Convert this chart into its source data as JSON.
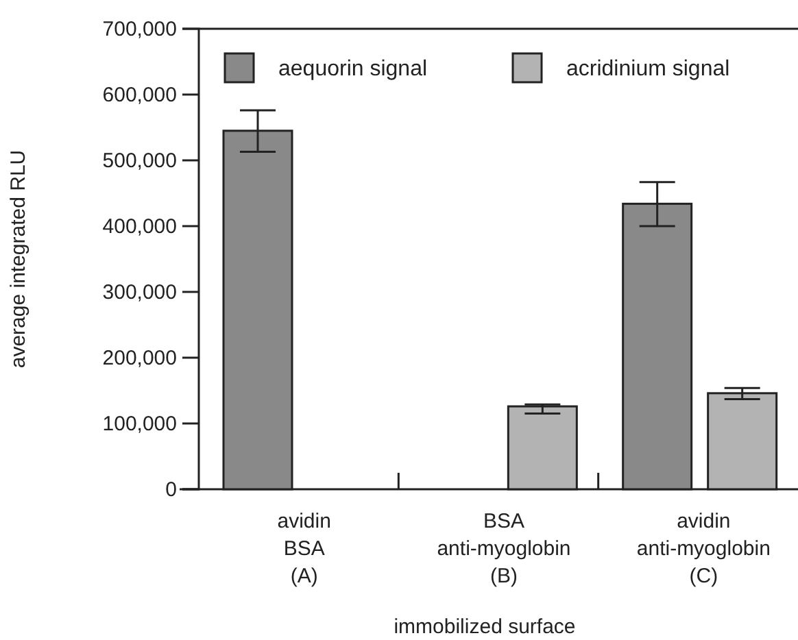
{
  "chart_data": {
    "type": "bar",
    "xlabel": "immobilized surface",
    "ylabel": "average integrated RLU",
    "categories": [
      "avidin\nBSA\n(A)",
      "BSA\nanti-myoglobin\n(B)",
      "avidin\nanti-myoglobin\n(C)"
    ],
    "series": [
      {
        "name": "aequorin signal",
        "color": "#898989",
        "values": [
          545000,
          null,
          434000
        ],
        "errors": [
          [
            513000,
            576000
          ],
          null,
          [
            400000,
            467000
          ]
        ]
      },
      {
        "name": "acridinium signal",
        "color": "#b3b3b3",
        "values": [
          null,
          126000,
          146000
        ],
        "errors": [
          null,
          [
            115000,
            129000
          ],
          [
            137000,
            154000
          ]
        ]
      }
    ],
    "ylim": [
      0,
      700000
    ],
    "yticks": [
      {
        "value": 0,
        "label": "0"
      },
      {
        "value": 100000,
        "label": "100,000"
      },
      {
        "value": 200000,
        "label": "200,000"
      },
      {
        "value": 300000,
        "label": "300,000"
      },
      {
        "value": 400000,
        "label": "400,000"
      },
      {
        "value": 500000,
        "label": "500,000"
      },
      {
        "value": 600000,
        "label": "600,000"
      },
      {
        "value": 700000,
        "label": "700,000"
      }
    ],
    "grid": false,
    "legend": "top"
  }
}
